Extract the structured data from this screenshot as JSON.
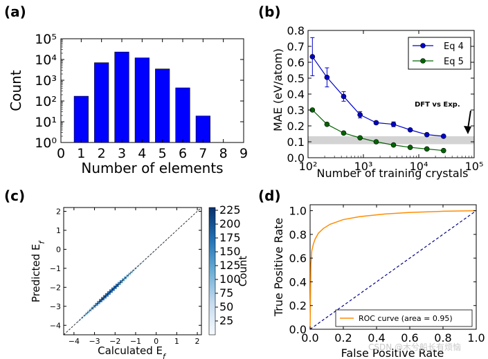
{
  "panels": {
    "a": "(a)",
    "b": "(b)",
    "c": "(c)",
    "d": "(d)"
  },
  "watermark": "CSDN @木兮船长有烦恼",
  "chart_data": [
    {
      "id": "a",
      "type": "bar",
      "categories": [
        1,
        2,
        3,
        4,
        5,
        6,
        7,
        8
      ],
      "values": [
        170,
        7000,
        23000,
        12000,
        3500,
        430,
        19,
        0
      ],
      "xticks": [
        "0",
        "1",
        "2",
        "3",
        "4",
        "5",
        "6",
        "7",
        "8",
        "9"
      ],
      "yticks": [
        "10⁰",
        "10¹",
        "10²",
        "10³",
        "10⁴",
        "10⁵"
      ],
      "xlabel": "Number of elements",
      "ylabel": "Count",
      "yscale": "log",
      "ylim": [
        1,
        100000
      ],
      "xlim": [
        0,
        9
      ],
      "color": "#0000ff"
    },
    {
      "id": "b",
      "type": "line",
      "xscale": "log",
      "xlim": [
        100,
        100000
      ],
      "ylim": [
        0,
        0.8
      ],
      "xticks": [
        "10²",
        "10³",
        "10⁴",
        "10⁵"
      ],
      "yticks": [
        "0.0",
        "0.1",
        "0.2",
        "0.3",
        "0.4",
        "0.5",
        "0.6",
        "0.7",
        "0.8"
      ],
      "xlabel": "Number of training crystals",
      "ylabel": "MAE (eV/atom)",
      "series": [
        {
          "name": "Eq 4",
          "color": "#0000cc",
          "x": [
            120,
            220,
            440,
            870,
            1700,
            3500,
            7000,
            14000,
            28000
          ],
          "y": [
            0.635,
            0.505,
            0.385,
            0.27,
            0.22,
            0.21,
            0.175,
            0.145,
            0.135
          ],
          "err": [
            0.12,
            0.06,
            0.03,
            0.02,
            0.01,
            0.015,
            0.008,
            0.006,
            0.005
          ]
        },
        {
          "name": "Eq 5",
          "color": "#006400",
          "x": [
            120,
            220,
            440,
            870,
            1700,
            3500,
            7000,
            14000,
            28000
          ],
          "y": [
            0.3,
            0.21,
            0.155,
            0.125,
            0.1,
            0.08,
            0.065,
            0.055,
            0.045
          ],
          "err": [
            0.005,
            0.005,
            0.004,
            0.004,
            0.003,
            0.003,
            0.003,
            0.002,
            0.002
          ]
        }
      ],
      "band": {
        "y0": 0.085,
        "y1": 0.135,
        "color": "#d3d3d3"
      },
      "annotation": {
        "text": "DFT vs Exp.",
        "x": 70000,
        "y": 0.14
      },
      "legend": "top-right"
    },
    {
      "id": "c",
      "type": "heatmap",
      "xlim": [
        -4.5,
        2.2
      ],
      "ylim": [
        -4.5,
        2.2
      ],
      "xticks": [
        "−4",
        "−3",
        "−2",
        "−1",
        "0",
        "1",
        "2"
      ],
      "yticks": [
        "−4",
        "−3",
        "−2",
        "−1",
        "0",
        "1",
        "2"
      ],
      "xlabel": "Calculated E",
      "xlabel_sub": "f",
      "ylabel": "Predicted E",
      "ylabel_sub": "f",
      "colorbar_label": "Count",
      "colorbar_ticks": [
        "25",
        "50",
        "75",
        "100",
        "125",
        "150",
        "175",
        "200",
        "225"
      ],
      "colorbar_range": [
        0,
        230
      ],
      "diagonal": true
    },
    {
      "id": "d",
      "type": "line",
      "xlim": [
        0,
        1
      ],
      "ylim": [
        0,
        1.05
      ],
      "xticks": [
        "0.0",
        "0.2",
        "0.4",
        "0.6",
        "0.8",
        "1.0"
      ],
      "yticks": [
        "0.0",
        "0.2",
        "0.4",
        "0.6",
        "0.8",
        "1.0"
      ],
      "xlabel": "False Positive Rate",
      "ylabel": "True Positive Rate",
      "series": [
        {
          "name": "ROC curve (area = 0.95)",
          "color": "#ff8c00",
          "x": [
            0,
            0.005,
            0.01,
            0.02,
            0.03,
            0.05,
            0.08,
            0.12,
            0.2,
            0.3,
            0.45,
            0.6,
            0.8,
            1.0
          ],
          "y": [
            0,
            0.55,
            0.66,
            0.72,
            0.76,
            0.81,
            0.85,
            0.885,
            0.925,
            0.95,
            0.972,
            0.985,
            0.995,
            1.0
          ]
        },
        {
          "name": "",
          "color": "#00008b",
          "dashed": true,
          "x": [
            0,
            1
          ],
          "y": [
            0,
            1
          ]
        }
      ],
      "legend": "bottom-right"
    }
  ]
}
